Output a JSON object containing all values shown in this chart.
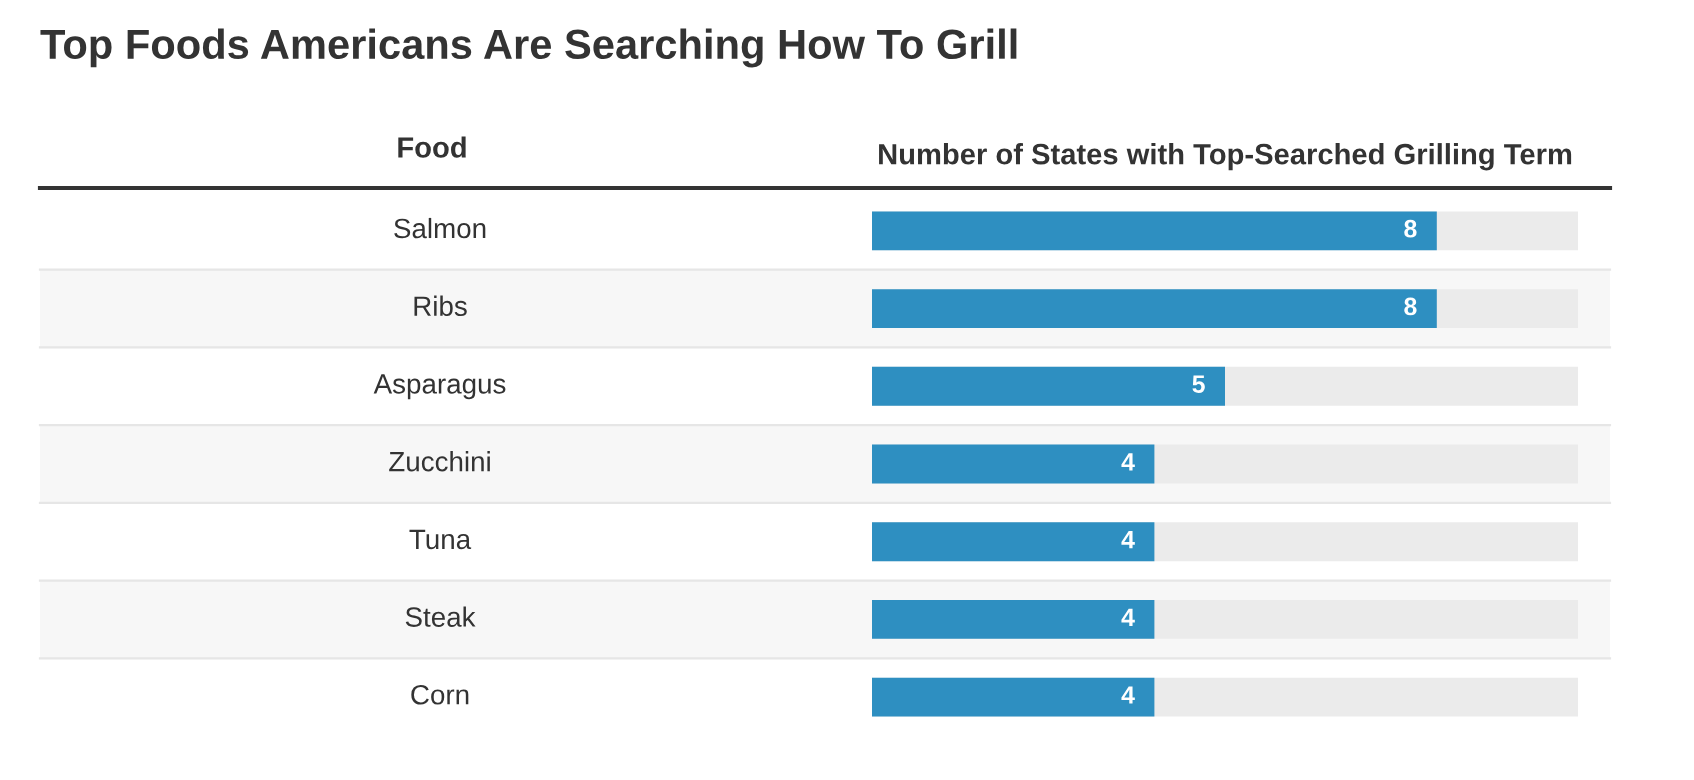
{
  "chart_data": {
    "type": "bar",
    "orientation": "horizontal",
    "title": "Top Foods Americans Are Searching How To Grill",
    "ylabel": "Food",
    "xlabel": "Number of States with Top-Searched Grilling Term",
    "categories": [
      "Salmon",
      "Ribs",
      "Asparagus",
      "Zucchini",
      "Tuna",
      "Steak",
      "Corn"
    ],
    "values": [
      8,
      8,
      5,
      4,
      4,
      4,
      4
    ],
    "color": "#2e8fc1",
    "xlim": [
      0,
      10
    ],
    "data_labels": true
  }
}
